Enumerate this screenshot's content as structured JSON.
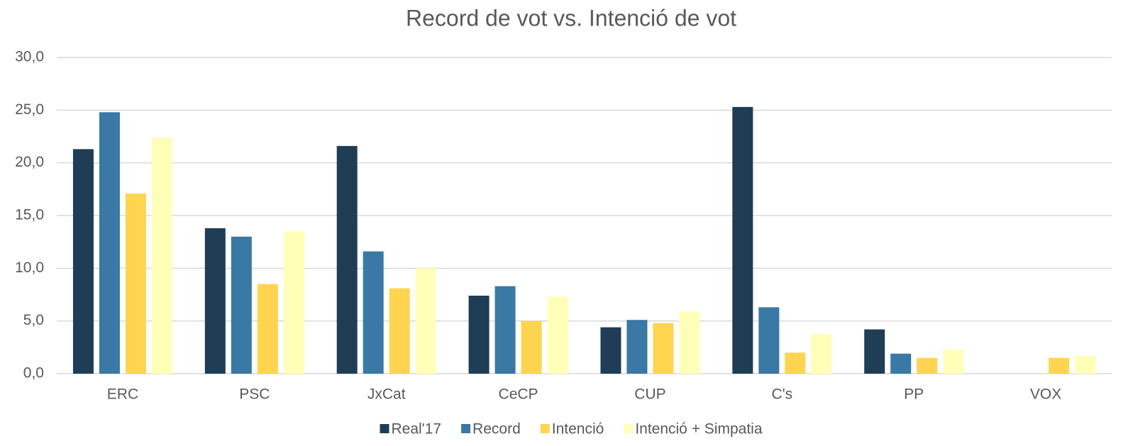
{
  "chart_data": {
    "type": "bar",
    "title": "Record de vot vs. Intenció de vot",
    "categories": [
      "ERC",
      "PSC",
      "JxCat",
      "CeCP",
      "CUP",
      "C's",
      "PP",
      "VOX"
    ],
    "series": [
      {
        "name": "Real'17",
        "color": "#1f3d54",
        "values": [
          21.3,
          13.8,
          21.6,
          7.4,
          4.4,
          25.3,
          4.2,
          null
        ]
      },
      {
        "name": "Record",
        "color": "#3a78a6",
        "values": [
          24.8,
          13.0,
          11.6,
          8.3,
          5.1,
          6.3,
          1.9,
          null
        ]
      },
      {
        "name": "Intenció",
        "color": "#ffd54f",
        "values": [
          17.1,
          8.5,
          8.1,
          5.0,
          4.8,
          2.0,
          1.5,
          1.5
        ]
      },
      {
        "name": "Intenció + Simpatia",
        "color": "#ffffb8",
        "values": [
          22.4,
          13.5,
          10.0,
          7.3,
          5.9,
          3.8,
          2.3,
          1.7
        ]
      }
    ],
    "ylim": [
      0,
      30
    ],
    "yticks": [
      {
        "value": 0,
        "label": "0,0"
      },
      {
        "value": 5,
        "label": "5,0"
      },
      {
        "value": 10,
        "label": "10,0"
      },
      {
        "value": 15,
        "label": "15,0"
      },
      {
        "value": 20,
        "label": "20,0"
      },
      {
        "value": 25,
        "label": "25,0"
      },
      {
        "value": 30,
        "label": "30,0"
      }
    ],
    "grid": true,
    "legend": "bottom"
  }
}
